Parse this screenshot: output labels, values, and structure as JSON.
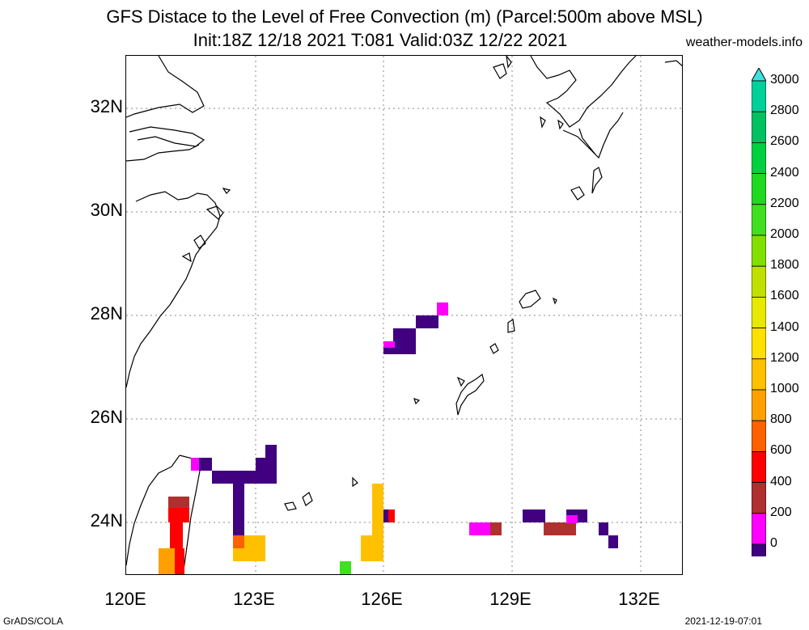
{
  "header": {
    "title_line1": "GFS Distace to the Level of Free Convection (m) (Parcel:500m above MSL)",
    "title_line2": "Init:18Z 12/18 2021 T:081 Valid:03Z 12/22 2021",
    "site": "weather-models.info"
  },
  "axes": {
    "lat_labels": [
      "32N",
      "30N",
      "28N",
      "26N",
      "24N"
    ],
    "lon_labels": [
      "120E",
      "123E",
      "126E",
      "129E",
      "132E"
    ]
  },
  "colorbar": {
    "labels": [
      "3000",
      "2800",
      "2600",
      "2400",
      "2200",
      "2000",
      "1800",
      "1600",
      "1400",
      "1200",
      "1000",
      "800",
      "600",
      "400",
      "200",
      "0"
    ],
    "colors": [
      "#00e0e0",
      "#00d09a",
      "#00c060",
      "#00d040",
      "#20d820",
      "#40e020",
      "#80e000",
      "#c0e000",
      "#e8e800",
      "#ffe000",
      "#ffc000",
      "#ffa000",
      "#ff6000",
      "#ff0000",
      "#b03030",
      "#ff00ff",
      "#400080"
    ],
    "top_arrow_color": "#40e0e0",
    "bottom_arrow_color": "#200060"
  },
  "footer": {
    "left": "GrADS/COLA",
    "right": "2021-12-19-07:01"
  }
}
